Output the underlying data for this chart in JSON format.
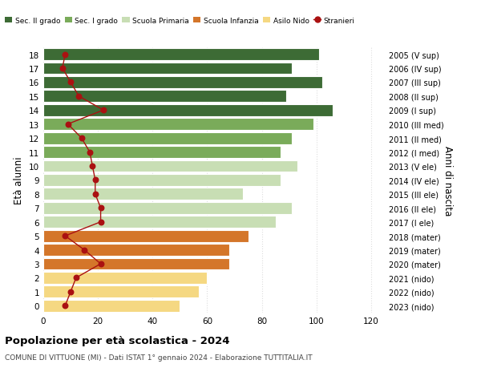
{
  "ages": [
    18,
    17,
    16,
    15,
    14,
    13,
    12,
    11,
    10,
    9,
    8,
    7,
    6,
    5,
    4,
    3,
    2,
    1,
    0
  ],
  "right_labels": [
    "2005 (V sup)",
    "2006 (IV sup)",
    "2007 (III sup)",
    "2008 (II sup)",
    "2009 (I sup)",
    "2010 (III med)",
    "2011 (II med)",
    "2012 (I med)",
    "2013 (V ele)",
    "2014 (IV ele)",
    "2015 (III ele)",
    "2016 (II ele)",
    "2017 (I ele)",
    "2018 (mater)",
    "2019 (mater)",
    "2020 (mater)",
    "2021 (nido)",
    "2022 (nido)",
    "2023 (nido)"
  ],
  "bar_values": [
    101,
    91,
    102,
    89,
    106,
    99,
    91,
    87,
    93,
    87,
    73,
    91,
    85,
    75,
    68,
    68,
    60,
    57,
    50
  ],
  "stranieri_values": [
    8,
    7,
    10,
    13,
    22,
    9,
    14,
    17,
    18,
    19,
    19,
    21,
    21,
    8,
    15,
    21,
    12,
    10,
    8
  ],
  "bar_colors": [
    "#3d6b35",
    "#3d6b35",
    "#3d6b35",
    "#3d6b35",
    "#3d6b35",
    "#7aab5a",
    "#7aab5a",
    "#7aab5a",
    "#c8deb4",
    "#c8deb4",
    "#c8deb4",
    "#c8deb4",
    "#c8deb4",
    "#d4762a",
    "#d4762a",
    "#d4762a",
    "#f5d882",
    "#f5d882",
    "#f5d882"
  ],
  "legend_labels": [
    "Sec. II grado",
    "Sec. I grado",
    "Scuola Primaria",
    "Scuola Infanzia",
    "Asilo Nido",
    "Stranieri"
  ],
  "legend_colors": [
    "#3d6b35",
    "#7aab5a",
    "#c8deb4",
    "#d4762a",
    "#f5d882",
    "#aa1111"
  ],
  "title": "Popolazione per età scolastica - 2024",
  "subtitle": "COMUNE DI VITTUONE (MI) - Dati ISTAT 1° gennaio 2024 - Elaborazione TUTTITALIA.IT",
  "ylabel": "Età alunni",
  "right_ylabel": "Anni di nascita",
  "xlabel_vals": [
    0,
    20,
    40,
    60,
    80,
    100,
    120
  ],
  "xlim": [
    0,
    125
  ],
  "background_color": "#ffffff",
  "grid_color": "#dddddd",
  "stranieri_line_color": "#aa1111",
  "bar_edge_color": "#ffffff"
}
